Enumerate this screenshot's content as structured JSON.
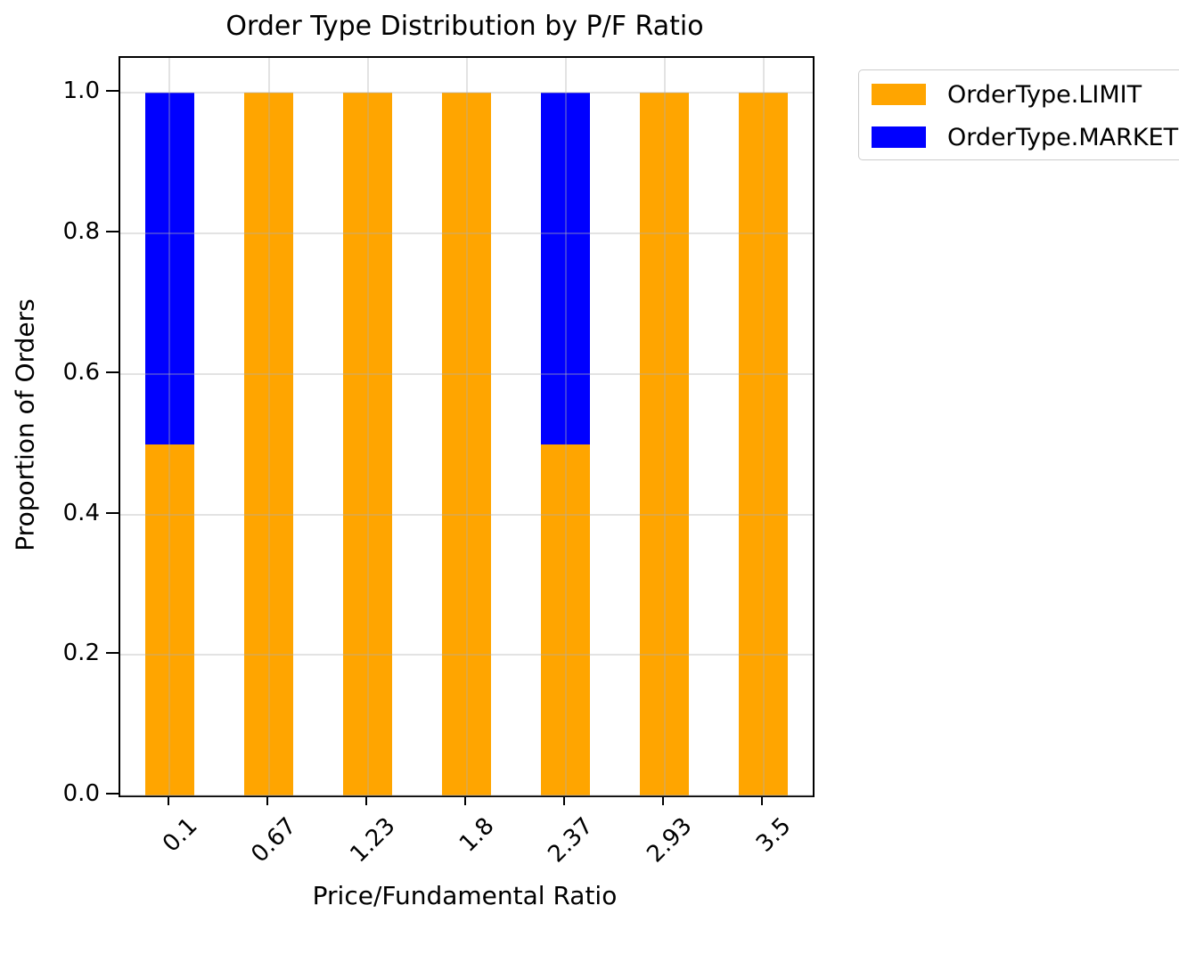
{
  "figure": {
    "background": "#ffffff"
  },
  "chart_data": {
    "type": "bar",
    "stacked": true,
    "title": "Order Type Distribution by P/F Ratio",
    "xlabel": "Price/Fundamental Ratio",
    "ylabel": "Proportion of Orders",
    "categories": [
      "0.1",
      "0.67",
      "1.23",
      "1.8",
      "2.37",
      "2.93",
      "3.5"
    ],
    "series": [
      {
        "name": "OrderType.LIMIT",
        "color": "#FFA500",
        "values": [
          0.5,
          1.0,
          1.0,
          1.0,
          0.5,
          1.0,
          1.0
        ]
      },
      {
        "name": "OrderType.MARKET",
        "color": "#0000FF",
        "values": [
          0.5,
          0.0,
          0.0,
          0.0,
          0.5,
          0.0,
          0.0
        ]
      }
    ],
    "ylim": [
      0,
      1.05
    ],
    "ytick_values": [
      0.0,
      0.2,
      0.4,
      0.6,
      0.8,
      1.0
    ],
    "ytick_labels": [
      "0.0",
      "0.2",
      "0.4",
      "0.6",
      "0.8",
      "1.0"
    ],
    "xtick_rotation_deg": 45,
    "bar_width_fraction": 0.5,
    "grid": true,
    "grid_color": "#b0b0b0",
    "legend": {
      "position": "upper-right, clipped by figure right edge",
      "entries": [
        "OrderType.LIMIT",
        "OrderType.MARKET"
      ]
    }
  }
}
